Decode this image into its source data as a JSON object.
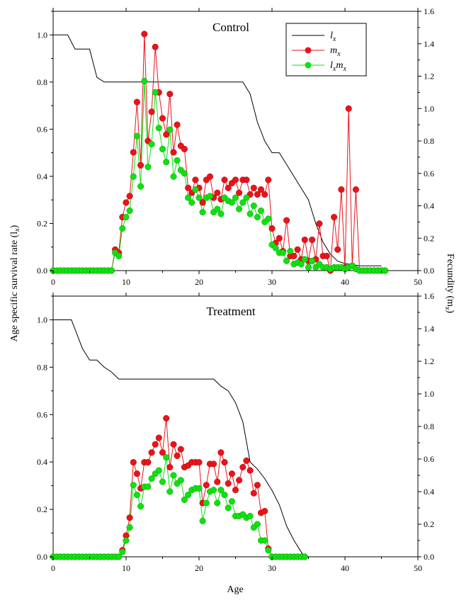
{
  "figure": {
    "y_left_label": "Age specific survival rate (l",
    "y_left_label_sub": "x",
    "y_left_label_end": ")",
    "y_right_label": "Fecundity (m",
    "y_right_label_sub": "x",
    "y_right_label_end": ")",
    "x_label": "Age"
  },
  "legend": [
    {
      "base": "l",
      "sub": "x",
      "base2": "",
      "sub2": "",
      "color": "#000000",
      "marker": false
    },
    {
      "base": "m",
      "sub": "x",
      "base2": "",
      "sub2": "",
      "color": "#e8141b",
      "marker": true
    },
    {
      "base": "l",
      "sub": "x",
      "base2": "m",
      "sub2": "x",
      "color": "#11e011",
      "marker": true
    }
  ],
  "colors": {
    "lx": "#000000",
    "mx": "#e8141b",
    "lxmx": "#11e011"
  },
  "chart_data": [
    {
      "type": "line",
      "title": "Control",
      "xlim": [
        0,
        50
      ],
      "ylim_left": [
        0,
        1.1
      ],
      "ylim_right": [
        0,
        1.6
      ],
      "x_ticks": [
        0,
        10,
        20,
        30,
        40,
        50
      ],
      "y_left_ticks": [
        "0.0",
        "0.2",
        "0.4",
        "0.6",
        "0.8",
        "1.0"
      ],
      "y_right_ticks": [
        "0.0",
        "0.2",
        "0.4",
        "0.6",
        "0.8",
        "1.0",
        "1.2",
        "1.4",
        "1.6"
      ],
      "legend": true,
      "lx": [
        [
          0,
          1.0
        ],
        [
          2,
          1.0
        ],
        [
          3,
          0.94
        ],
        [
          5,
          0.94
        ],
        [
          6,
          0.82
        ],
        [
          7,
          0.8
        ],
        [
          26,
          0.8
        ],
        [
          27,
          0.75
        ],
        [
          28,
          0.63
        ],
        [
          29,
          0.55
        ],
        [
          30,
          0.5
        ],
        [
          31,
          0.5
        ],
        [
          33,
          0.4
        ],
        [
          34,
          0.35
        ],
        [
          35,
          0.3
        ],
        [
          36,
          0.2
        ],
        [
          37,
          0.12
        ],
        [
          38,
          0.07
        ],
        [
          39,
          0.04
        ],
        [
          40,
          0.03
        ],
        [
          42,
          0.02
        ],
        [
          45,
          0.02
        ]
      ],
      "mx_x": [
        0,
        0.5,
        1,
        1.5,
        2,
        2.5,
        3,
        3.5,
        4,
        4.5,
        5,
        5.5,
        6,
        6.5,
        7,
        7.5,
        8,
        8.5,
        9,
        9.5,
        10,
        10.5,
        11,
        11.5,
        12,
        12.5,
        13,
        13.5,
        14,
        14.5,
        15,
        15.5,
        16,
        16.5,
        17,
        17.5,
        18,
        18.5,
        19,
        19.5,
        20,
        20.5,
        21,
        21.5,
        22,
        22.5,
        23,
        23.5,
        24,
        24.5,
        25,
        25.5,
        26,
        26.5,
        27,
        27.5,
        28,
        28.5,
        29,
        29.5,
        30,
        30.5,
        31,
        31.5,
        32,
        32.5,
        33,
        33.5,
        34,
        34.5,
        35,
        35.5,
        36,
        36.5,
        37,
        37.5,
        38,
        38.5,
        39,
        39.5,
        40,
        40.5,
        41,
        41.5,
        42,
        42.5,
        43,
        43.5,
        44,
        44.5,
        45,
        45.5
      ],
      "mx": [
        0,
        0,
        0,
        0,
        0,
        0,
        0,
        0,
        0,
        0,
        0,
        0,
        0,
        0,
        0,
        0,
        0,
        0.13,
        0.11,
        0.33,
        0.42,
        0.46,
        0.73,
        1.04,
        0.65,
        1.46,
        0.8,
        0.98,
        1.38,
        1.1,
        0.94,
        0.84,
        1.09,
        0.73,
        0.9,
        0.77,
        0.75,
        0.51,
        0.48,
        0.56,
        0.51,
        0.42,
        0.56,
        0.58,
        0.45,
        0.48,
        0.44,
        0.56,
        0.51,
        0.54,
        0.56,
        0.48,
        0.56,
        0.56,
        0.47,
        0.51,
        0.47,
        0.5,
        0.47,
        0.56,
        0.26,
        0.17,
        0.2,
        0.12,
        0.31,
        0.09,
        0.09,
        0.13,
        0.07,
        0.19,
        0.06,
        0.19,
        0.07,
        0.29,
        0.09,
        0.09,
        0.0,
        0.33,
        0.13,
        0.5,
        0.02,
        1.0,
        0.03,
        0.5,
        0.0,
        0.0,
        0.0,
        0.0,
        0.0,
        0.0,
        0.0,
        0.0
      ],
      "lxmx": [
        0,
        0,
        0,
        0,
        0,
        0,
        0,
        0,
        0,
        0,
        0,
        0,
        0,
        0,
        0,
        0,
        0,
        0.11,
        0.09,
        0.26,
        0.33,
        0.37,
        0.58,
        0.83,
        0.52,
        1.17,
        0.64,
        0.78,
        1.1,
        0.88,
        0.75,
        0.67,
        0.87,
        0.58,
        0.68,
        0.62,
        0.6,
        0.45,
        0.42,
        0.5,
        0.45,
        0.36,
        0.45,
        0.46,
        0.36,
        0.38,
        0.35,
        0.45,
        0.43,
        0.42,
        0.45,
        0.38,
        0.42,
        0.45,
        0.35,
        0.4,
        0.33,
        0.37,
        0.3,
        0.32,
        0.16,
        0.14,
        0.11,
        0.11,
        0.06,
        0.12,
        0.04,
        0.05,
        0.04,
        0.07,
        0.02,
        0.06,
        0.02,
        0.04,
        0.02,
        0.02,
        0.01,
        0.02,
        0.02,
        0.02,
        0.01,
        0.02,
        0.03,
        0.01,
        0.0,
        0.0,
        0.0,
        0.0,
        0.0,
        0.0,
        0.0,
        0.0
      ]
    },
    {
      "type": "line",
      "title": "Treatment",
      "xlim": [
        0,
        50
      ],
      "ylim_left": [
        0,
        1.1
      ],
      "ylim_right": [
        0,
        1.6
      ],
      "x_ticks": [
        0,
        10,
        20,
        30,
        40,
        50
      ],
      "y_left_ticks": [
        "0.0",
        "0.2",
        "0.4",
        "0.6",
        "0.8",
        "1.0"
      ],
      "y_right_ticks": [
        "0.0",
        "0.2",
        "0.4",
        "0.6",
        "0.8",
        "1.0",
        "1.2",
        "1.4",
        "1.6"
      ],
      "legend": false,
      "lx": [
        [
          0,
          1.0
        ],
        [
          2.5,
          1.0
        ],
        [
          3.5,
          0.92
        ],
        [
          4,
          0.88
        ],
        [
          5,
          0.83
        ],
        [
          6,
          0.83
        ],
        [
          7,
          0.8
        ],
        [
          8,
          0.78
        ],
        [
          9,
          0.75
        ],
        [
          22,
          0.75
        ],
        [
          23,
          0.72
        ],
        [
          24,
          0.7
        ],
        [
          25,
          0.65
        ],
        [
          26,
          0.57
        ],
        [
          27,
          0.4
        ],
        [
          28,
          0.37
        ],
        [
          29,
          0.33
        ],
        [
          30,
          0.28
        ],
        [
          31,
          0.22
        ],
        [
          32,
          0.13
        ],
        [
          33,
          0.07
        ],
        [
          34,
          0.02
        ],
        [
          34.5,
          0.0
        ]
      ],
      "mx_x": [
        0,
        0.5,
        1,
        1.5,
        2,
        2.5,
        3,
        3.5,
        4,
        4.5,
        5,
        5.5,
        6,
        6.5,
        7,
        7.5,
        8,
        8.5,
        9,
        9.5,
        10,
        10.5,
        11,
        11.5,
        12,
        12.5,
        13,
        13.5,
        14,
        14.5,
        15,
        15.5,
        16,
        16.5,
        17,
        17.5,
        18,
        18.5,
        19,
        19.5,
        20,
        20.5,
        21,
        21.5,
        22,
        22.5,
        23,
        23.5,
        24,
        24.5,
        25,
        25.5,
        26,
        26.5,
        27,
        27.5,
        28,
        28.5,
        29,
        29.5,
        30,
        30.5,
        31,
        31.5,
        32,
        32.5,
        33,
        33.5,
        34,
        34.5
      ],
      "mx": [
        0,
        0,
        0,
        0,
        0,
        0,
        0,
        0,
        0,
        0,
        0,
        0,
        0,
        0,
        0,
        0,
        0,
        0,
        0,
        0.04,
        0.13,
        0.24,
        0.58,
        0.51,
        0.42,
        0.58,
        0.58,
        0.64,
        0.69,
        0.73,
        0.64,
        0.85,
        0.55,
        0.69,
        0.62,
        0.66,
        0.55,
        0.56,
        0.58,
        0.58,
        0.58,
        0.33,
        0.44,
        0.57,
        0.57,
        0.46,
        0.64,
        0.58,
        0.45,
        0.51,
        0.41,
        0.47,
        0.55,
        0.59,
        0.53,
        0.39,
        0.44,
        0.27,
        0.28,
        0.05,
        0,
        0,
        0,
        0,
        0,
        0,
        0,
        0,
        0,
        0
      ],
      "lxmx": [
        0,
        0,
        0,
        0,
        0,
        0,
        0,
        0,
        0,
        0,
        0,
        0,
        0,
        0,
        0,
        0,
        0,
        0,
        0,
        0.03,
        0.1,
        0.18,
        0.44,
        0.38,
        0.31,
        0.43,
        0.43,
        0.48,
        0.51,
        0.53,
        0.46,
        0.61,
        0.4,
        0.5,
        0.45,
        0.47,
        0.35,
        0.38,
        0.41,
        0.42,
        0.42,
        0.22,
        0.33,
        0.4,
        0.41,
        0.33,
        0.41,
        0.38,
        0.3,
        0.34,
        0.25,
        0.25,
        0.26,
        0.24,
        0.25,
        0.18,
        0.2,
        0.1,
        0.1,
        0.04,
        0,
        0,
        0,
        0,
        0,
        0,
        0,
        0,
        0,
        0
      ]
    }
  ]
}
